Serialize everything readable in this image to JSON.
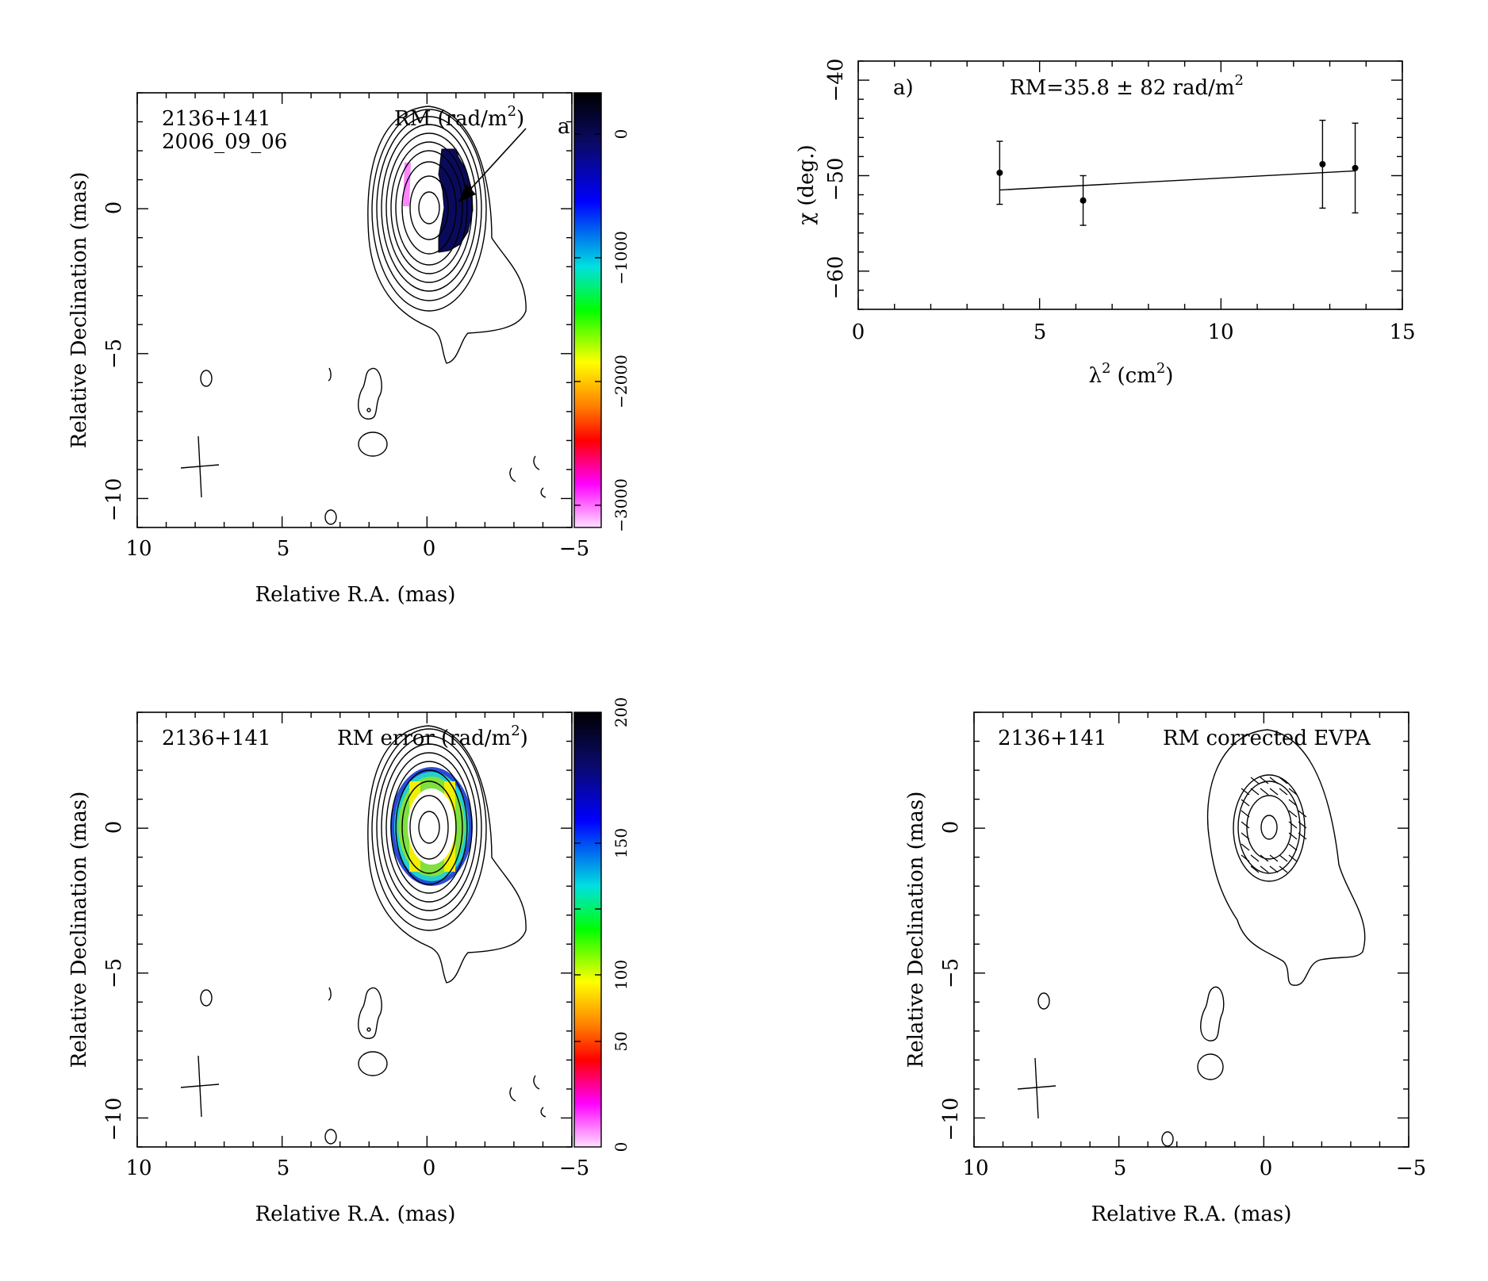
{
  "panels": {
    "rm_map": {
      "source": "2136+141",
      "date": "2006_09_06",
      "quantity": "RM (rad/m",
      "quantity_sup": "2",
      "quantity_close": ")",
      "corner_label": "a",
      "xlabel": "Relative R.A. (mas)",
      "ylabel": "Relative Declination (mas)",
      "x_ticks": [
        "10",
        "5",
        "0",
        "−5"
      ],
      "y_ticks": [
        "0",
        "−5",
        "−10"
      ],
      "colorbar_ticks": [
        "0",
        "−1000",
        "−2000",
        "−3000"
      ]
    },
    "rm_fit": {
      "panel_label": "a)",
      "rm_text": "RM=35.8 ± 82 rad/m",
      "rm_sup": "2",
      "xlabel": "λ",
      "xlabel_sup": "2",
      "xlabel_unit": "(cm",
      "xlabel_unit_sup": "2",
      "xlabel_close": ")",
      "ylabel": "χ (deg.)",
      "x_ticks": [
        "0",
        "5",
        "10",
        "15"
      ],
      "y_ticks": [
        "−40",
        "−50",
        "−60"
      ]
    },
    "rm_error_map": {
      "source": "2136+141",
      "quantity": "RM error (rad/m",
      "quantity_sup": "2",
      "quantity_close": ")",
      "xlabel": "Relative R.A. (mas)",
      "ylabel": "Relative Declination (mas)",
      "x_ticks": [
        "10",
        "5",
        "0",
        "−5"
      ],
      "y_ticks": [
        "0",
        "−5",
        "−10"
      ],
      "colorbar_ticks": [
        "200",
        "150",
        "100",
        "50",
        "0"
      ]
    },
    "evpa_map": {
      "source": "2136+141",
      "quantity": "RM corrected EVPA",
      "xlabel": "Relative R.A. (mas)",
      "ylabel": "Relative Declination (mas)",
      "x_ticks": [
        "10",
        "5",
        "0",
        "−5"
      ],
      "y_ticks": [
        "0",
        "−5",
        "−10"
      ]
    }
  },
  "chart_data": [
    {
      "type": "heatmap",
      "title": "RM (rad/m2)",
      "xlabel": "Relative R.A. (mas)",
      "ylabel": "Relative Declination (mas)",
      "xlim": [
        10,
        -5
      ],
      "ylim": [
        -11,
        4
      ],
      "colorbar_range": [
        -3200,
        300
      ],
      "colorbar_ticks": [
        0,
        -1000,
        -2000,
        -3000
      ]
    },
    {
      "type": "scatter",
      "xlabel": "λ2 (cm2)",
      "ylabel": "χ (deg.)",
      "xlim": [
        0,
        15
      ],
      "ylim": [
        -64,
        -38
      ],
      "points": [
        {
          "x": 3.9,
          "y": -49.7,
          "err": 3.3
        },
        {
          "x": 6.2,
          "y": -52.6,
          "err": 2.6
        },
        {
          "x": 12.8,
          "y": -48.8,
          "err": 4.6
        },
        {
          "x": 13.7,
          "y": -49.2,
          "err": 4.7
        }
      ],
      "fit_line": {
        "x": [
          3.9,
          13.7
        ],
        "y": [
          -51.5,
          -49.5
        ]
      },
      "annotation": "RM=35.8 ± 82 rad/m2"
    },
    {
      "type": "heatmap",
      "title": "RM error (rad/m2)",
      "xlabel": "Relative R.A. (mas)",
      "ylabel": "Relative Declination (mas)",
      "xlim": [
        10,
        -5
      ],
      "ylim": [
        -11,
        4
      ],
      "colorbar_range": [
        0,
        200
      ],
      "colorbar_ticks": [
        0,
        50,
        100,
        150,
        200
      ]
    },
    {
      "type": "scatter",
      "title": "RM corrected EVPA",
      "xlabel": "Relative R.A. (mas)",
      "ylabel": "Relative Declination (mas)",
      "xlim": [
        10,
        -5
      ],
      "ylim": [
        -11,
        4
      ]
    }
  ]
}
